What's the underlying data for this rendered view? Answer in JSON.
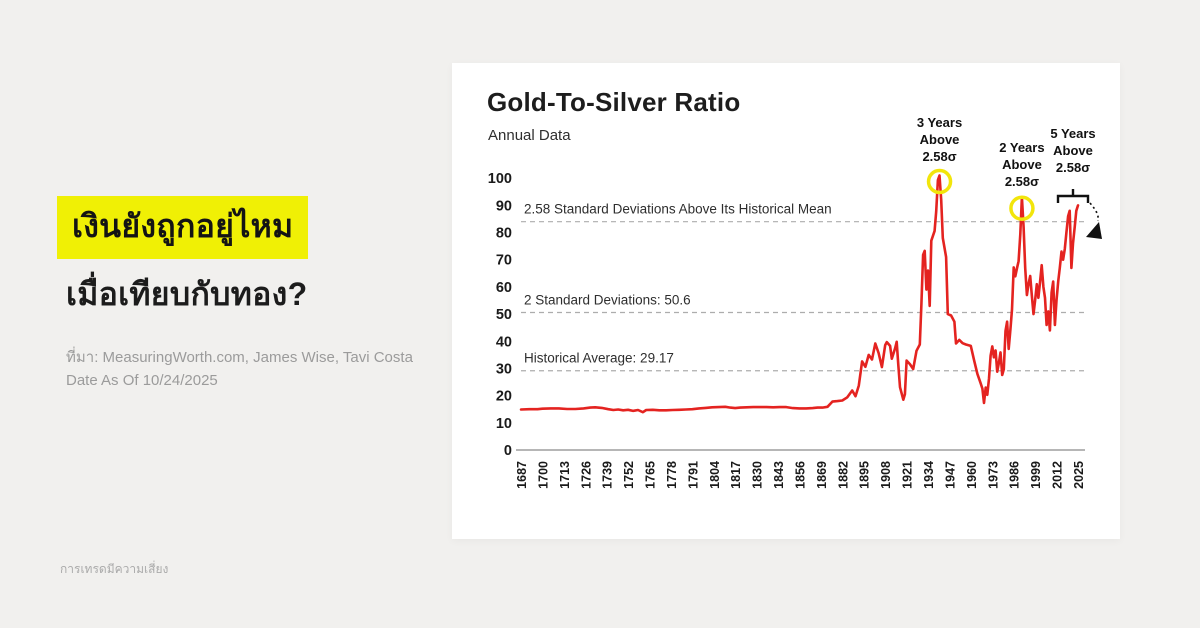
{
  "page": {
    "footer_disclaimer": "การเทรดมีความเสี่ยง"
  },
  "left_panel": {
    "headline_highlighted": "เงินยังถูกอยู่ไหม",
    "headline_line2": "เมื่อเทียบกับทอง?",
    "highlight_color": "#f0f005",
    "source_line1": "ที่มา: MeasuringWorth.com, James Wise, Tavi Costa",
    "source_line2": "Date As Of 10/24/2025"
  },
  "chart_card": {
    "title": "Gold-To-Silver Ratio",
    "subtitle": "Annual Data"
  },
  "chart_data": {
    "type": "line",
    "title": "Gold-To-Silver Ratio",
    "subtitle": "Annual Data",
    "series_name": "Gold-to-silver ratio (annual)",
    "line_color": "#e42320",
    "marker_color": "#f2e50b",
    "axis_color": "#8a8a8a",
    "grid": "dashed-reference-lines-only",
    "xlim": [
      1687,
      2025
    ],
    "ylim": [
      0,
      100
    ],
    "y_ticks": [
      0,
      10,
      20,
      30,
      40,
      50,
      60,
      70,
      80,
      90,
      100
    ],
    "x_ticks": [
      1687,
      1700,
      1713,
      1726,
      1739,
      1752,
      1765,
      1778,
      1791,
      1804,
      1817,
      1830,
      1843,
      1856,
      1869,
      1882,
      1895,
      1908,
      1921,
      1934,
      1947,
      1960,
      1973,
      1986,
      1999,
      2012,
      2025
    ],
    "reference_lines": [
      {
        "label": "2.58 Standard Deviations Above Its Historical Mean",
        "value": 84
      },
      {
        "label": "2 Standard Deviations: 50.6",
        "value": 50.6
      },
      {
        "label": "Historical Average: 29.17",
        "value": 29.17
      }
    ],
    "annotations": [
      {
        "id": "peak-1941",
        "lines": [
          "3 Years",
          "Above",
          "2.58σ"
        ],
        "year": 1941,
        "value": 101,
        "marker": "circle"
      },
      {
        "id": "peak-1991",
        "lines": [
          "2 Years",
          "Above",
          "2.58σ"
        ],
        "year": 1991,
        "value": 93,
        "marker": "circle"
      },
      {
        "id": "recent-5y",
        "lines": [
          "5 Years",
          "Above",
          "2.58σ"
        ],
        "year": 2022,
        "value": 90,
        "marker": "bracket-arrow"
      }
    ],
    "points": [
      [
        1687,
        14.9
      ],
      [
        1692,
        15.0
      ],
      [
        1697,
        15.0
      ],
      [
        1700,
        15.2
      ],
      [
        1705,
        15.3
      ],
      [
        1710,
        15.3
      ],
      [
        1715,
        15.1
      ],
      [
        1720,
        15.1
      ],
      [
        1725,
        15.3
      ],
      [
        1729,
        15.6
      ],
      [
        1732,
        15.7
      ],
      [
        1736,
        15.5
      ],
      [
        1740,
        15.0
      ],
      [
        1743,
        14.7
      ],
      [
        1746,
        14.9
      ],
      [
        1749,
        14.6
      ],
      [
        1752,
        14.8
      ],
      [
        1755,
        14.4
      ],
      [
        1758,
        14.7
      ],
      [
        1761,
        13.9
      ],
      [
        1763,
        14.7
      ],
      [
        1767,
        14.8
      ],
      [
        1771,
        14.6
      ],
      [
        1775,
        14.6
      ],
      [
        1779,
        14.7
      ],
      [
        1783,
        14.8
      ],
      [
        1787,
        14.9
      ],
      [
        1791,
        15.0
      ],
      [
        1795,
        15.3
      ],
      [
        1799,
        15.5
      ],
      [
        1803,
        15.7
      ],
      [
        1807,
        15.8
      ],
      [
        1811,
        15.9
      ],
      [
        1814,
        15.6
      ],
      [
        1817,
        15.4
      ],
      [
        1820,
        15.6
      ],
      [
        1824,
        15.7
      ],
      [
        1828,
        15.8
      ],
      [
        1832,
        15.8
      ],
      [
        1836,
        15.8
      ],
      [
        1840,
        15.7
      ],
      [
        1844,
        15.8
      ],
      [
        1848,
        15.8
      ],
      [
        1852,
        15.4
      ],
      [
        1856,
        15.3
      ],
      [
        1860,
        15.3
      ],
      [
        1864,
        15.4
      ],
      [
        1867,
        15.6
      ],
      [
        1870,
        15.6
      ],
      [
        1873,
        15.9
      ],
      [
        1876,
        17.8
      ],
      [
        1879,
        18.0
      ],
      [
        1882,
        18.2
      ],
      [
        1885,
        19.4
      ],
      [
        1888,
        21.9
      ],
      [
        1890,
        19.8
      ],
      [
        1892,
        23.7
      ],
      [
        1894,
        32.6
      ],
      [
        1896,
        30.6
      ],
      [
        1898,
        35.0
      ],
      [
        1900,
        33.3
      ],
      [
        1902,
        39.2
      ],
      [
        1904,
        35.7
      ],
      [
        1906,
        30.5
      ],
      [
        1908,
        38.6
      ],
      [
        1909,
        39.7
      ],
      [
        1911,
        38.3
      ],
      [
        1912,
        33.6
      ],
      [
        1914,
        37.4
      ],
      [
        1915,
        39.8
      ],
      [
        1916,
        31.3
      ],
      [
        1917,
        23.1
      ],
      [
        1919,
        18.5
      ],
      [
        1920,
        20.5
      ],
      [
        1921,
        32.9
      ],
      [
        1923,
        31.6
      ],
      [
        1925,
        29.8
      ],
      [
        1927,
        36.5
      ],
      [
        1929,
        38.8
      ],
      [
        1930,
        53.6
      ],
      [
        1931,
        71.8
      ],
      [
        1932,
        73.3
      ],
      [
        1933,
        59.0
      ],
      [
        1934,
        66.0
      ],
      [
        1935,
        53.0
      ],
      [
        1936,
        77.0
      ],
      [
        1938,
        80.6
      ],
      [
        1939,
        87.8
      ],
      [
        1940,
        99.3
      ],
      [
        1941,
        101.0
      ],
      [
        1942,
        92.0
      ],
      [
        1943,
        78.0
      ],
      [
        1945,
        71.0
      ],
      [
        1946,
        50.0
      ],
      [
        1948,
        49.5
      ],
      [
        1950,
        47.2
      ],
      [
        1951,
        39.2
      ],
      [
        1953,
        40.5
      ],
      [
        1955,
        39.3
      ],
      [
        1957,
        38.8
      ],
      [
        1960,
        38.3
      ],
      [
        1962,
        33.0
      ],
      [
        1964,
        28.0
      ],
      [
        1966,
        24.5
      ],
      [
        1967,
        22.6
      ],
      [
        1968,
        17.3
      ],
      [
        1969,
        23.0
      ],
      [
        1970,
        20.3
      ],
      [
        1971,
        26.3
      ],
      [
        1972,
        34.7
      ],
      [
        1973,
        38.1
      ],
      [
        1974,
        34.1
      ],
      [
        1975,
        36.6
      ],
      [
        1976,
        28.8
      ],
      [
        1977,
        32.1
      ],
      [
        1978,
        35.9
      ],
      [
        1979,
        27.6
      ],
      [
        1980,
        29.7
      ],
      [
        1981,
        43.8
      ],
      [
        1982,
        47.2
      ],
      [
        1983,
        37.2
      ],
      [
        1984,
        44.3
      ],
      [
        1985,
        51.7
      ],
      [
        1986,
        67.2
      ],
      [
        1987,
        63.9
      ],
      [
        1988,
        66.9
      ],
      [
        1989,
        69.5
      ],
      [
        1990,
        79.4
      ],
      [
        1991,
        93.0
      ],
      [
        1992,
        82.0
      ],
      [
        1993,
        67.0
      ],
      [
        1994,
        57.0
      ],
      [
        1995,
        61.0
      ],
      [
        1996,
        64.0
      ],
      [
        1997,
        57.0
      ],
      [
        1998,
        50.0
      ],
      [
        1999,
        55.0
      ],
      [
        2000,
        61.0
      ],
      [
        2001,
        56.0
      ],
      [
        2002,
        62.0
      ],
      [
        2003,
        68.0
      ],
      [
        2004,
        60.0
      ],
      [
        2005,
        56.0
      ],
      [
        2006,
        46.0
      ],
      [
        2007,
        51.0
      ],
      [
        2008,
        44.0
      ],
      [
        2009,
        58.0
      ],
      [
        2010,
        62.0
      ],
      [
        2011,
        46.0
      ],
      [
        2012,
        55.0
      ],
      [
        2013,
        62.0
      ],
      [
        2014,
        67.0
      ],
      [
        2015,
        73.0
      ],
      [
        2016,
        70.0
      ],
      [
        2017,
        74.0
      ],
      [
        2018,
        80.0
      ],
      [
        2019,
        86.0
      ],
      [
        2020,
        88.0
      ],
      [
        2021,
        67.0
      ],
      [
        2022,
        76.0
      ],
      [
        2023,
        82.0
      ],
      [
        2024,
        88.0
      ],
      [
        2025,
        90.0
      ]
    ]
  }
}
